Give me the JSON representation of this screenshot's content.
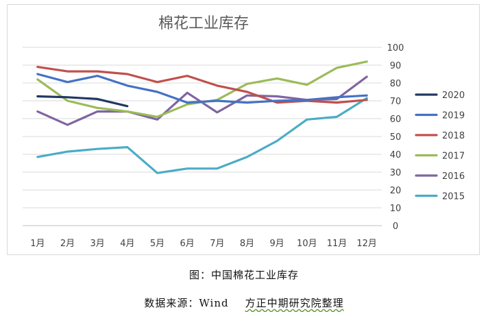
{
  "figure_caption": "图：中国棉花工业库存",
  "source": {
    "prefix": "数据来源：",
    "vendor": "Wind",
    "org": "方正中期研究院整理"
  },
  "chart_data": {
    "type": "line",
    "title": "棉花工业库存",
    "xlabel": "",
    "ylabel": "",
    "categories": [
      "1月",
      "2月",
      "3月",
      "4月",
      "5月",
      "6月",
      "7月",
      "8月",
      "9月",
      "10月",
      "11月",
      "12月"
    ],
    "ylim": [
      0,
      100
    ],
    "yticks": [
      0,
      10,
      20,
      30,
      40,
      50,
      60,
      70,
      80,
      90,
      100
    ],
    "grid": true,
    "legend_position": "right",
    "series": [
      {
        "name": "2020",
        "color": "#203864",
        "values": [
          72.5,
          72,
          71,
          67,
          null,
          null,
          null,
          null,
          null,
          null,
          null,
          null
        ]
      },
      {
        "name": "2019",
        "color": "#4472c4",
        "values": [
          85,
          80.5,
          84,
          78.5,
          75,
          69,
          70,
          69,
          70,
          70.5,
          72,
          73
        ]
      },
      {
        "name": "2018",
        "color": "#c0504d",
        "values": [
          89,
          86.5,
          86.5,
          85,
          80.5,
          84,
          78.5,
          75,
          69,
          70,
          69,
          70.5
        ]
      },
      {
        "name": "2017",
        "color": "#9bbb59",
        "values": [
          82,
          70,
          66,
          64,
          61,
          68,
          70.5,
          79.5,
          82.5,
          79,
          88.5,
          92
        ]
      },
      {
        "name": "2016",
        "color": "#8064a2",
        "values": [
          64,
          56.5,
          64,
          64,
          59.5,
          74.5,
          63.5,
          73,
          72.5,
          70.5,
          71,
          83.5
        ]
      },
      {
        "name": "2015",
        "color": "#4bacc6",
        "values": [
          38.5,
          41.5,
          43,
          44,
          29.5,
          32,
          32,
          38.5,
          47.5,
          59.5,
          61,
          71.5
        ]
      }
    ]
  }
}
